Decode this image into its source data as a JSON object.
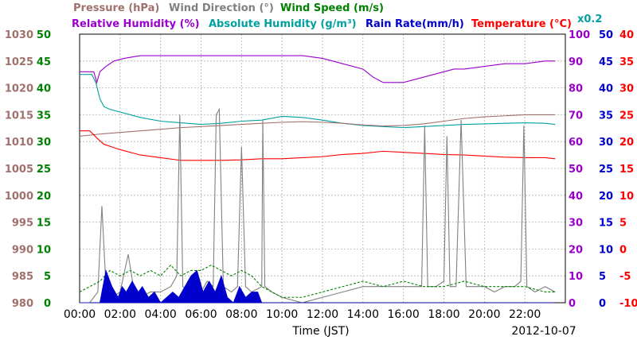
{
  "chart_data": {
    "type": "line",
    "date": "2012-10-07",
    "xlabel": "Time (JST)",
    "x_ticks": [
      "00:00",
      "02:00",
      "04:00",
      "06:00",
      "08:00",
      "10:00",
      "12:00",
      "14:00",
      "16:00",
      "18:00",
      "20:00",
      "22:00"
    ],
    "xlim": [
      0,
      24
    ],
    "legend_row1": [
      {
        "label": "Pressure (hPa)",
        "color": "#a0706c"
      },
      {
        "label": "Wind Direction (°)",
        "color": "#808080"
      },
      {
        "label": "Wind Speed (m/s)",
        "color": "#008000"
      }
    ],
    "legend_row2": [
      {
        "label": "Relative Humidity (%)",
        "color": "#9900cc"
      },
      {
        "label": "Absolute Humidity (g/m³)",
        "color": "#00a0a0"
      },
      {
        "label": "Rain Rate(mm/h)",
        "color": "#0000cc"
      },
      {
        "label": "Temperature (°C)",
        "color": "#ff0000"
      }
    ],
    "multiplier_label": "x0.2",
    "axes": [
      {
        "name": "pressure",
        "color": "#a0706c",
        "range": [
          980,
          1030
        ],
        "ticks": [
          "980",
          "985",
          "990",
          "995",
          "1000",
          "1005",
          "1010",
          "1015",
          "1020",
          "1025",
          "1030"
        ]
      },
      {
        "name": "wind_speed",
        "color": "#008000",
        "range": [
          0,
          50
        ],
        "ticks": [
          "0",
          "5",
          "10",
          "15",
          "20",
          "25",
          "30",
          "35",
          "40",
          "45",
          "50"
        ]
      },
      {
        "name": "humidity",
        "color": "#9900cc",
        "range": [
          0,
          100
        ],
        "ticks": [
          "0",
          "10",
          "20",
          "30",
          "40",
          "50",
          "60",
          "70",
          "80",
          "90",
          "100"
        ]
      },
      {
        "name": "rain_rate",
        "color": "#0000cc",
        "range": [
          0,
          50
        ],
        "ticks": [
          "0",
          "5",
          "10",
          "15",
          "20",
          "25",
          "30",
          "35",
          "40",
          "45",
          "50"
        ]
      },
      {
        "name": "temperature",
        "color": "#ff0000",
        "range": [
          -10,
          40
        ],
        "ticks": [
          "-10",
          "-5",
          "0",
          "5",
          "10",
          "15",
          "20",
          "25",
          "30",
          "35",
          "40"
        ]
      }
    ],
    "series": [
      {
        "name": "Relative Humidity (%)",
        "axis": "humidity",
        "color": "#9900cc",
        "x": [
          0,
          0.7,
          0.85,
          1.0,
          1.3,
          1.7,
          2.2,
          3,
          4,
          5,
          6,
          7,
          8,
          9,
          10,
          11,
          12,
          13,
          14,
          14.5,
          15,
          15.5,
          16,
          16.5,
          17,
          17.5,
          18,
          18.5,
          19,
          20,
          21,
          22,
          23,
          23.5
        ],
        "y": [
          86,
          86,
          82,
          86,
          88,
          90,
          91,
          92,
          92,
          92,
          92,
          92,
          92,
          92,
          92,
          92,
          91,
          89,
          87,
          84,
          82,
          82,
          82,
          83,
          84,
          85,
          86,
          87,
          87,
          88,
          89,
          89,
          90,
          90
        ]
      },
      {
        "name": "Absolute Humidity (g/m³)",
        "axis": "pressure",
        "color": "#00a0a0",
        "x": [
          0,
          0.6,
          0.8,
          1.0,
          1.2,
          1.5,
          2,
          3,
          4,
          5,
          6,
          7,
          8,
          9,
          10,
          11,
          12,
          13,
          14,
          15,
          16,
          17,
          18,
          19,
          20,
          21,
          22,
          23,
          23.5
        ],
        "y": [
          1022.5,
          1022.5,
          1021,
          1018,
          1016.5,
          1016,
          1015.5,
          1014.5,
          1013.8,
          1013.5,
          1013.2,
          1013.4,
          1013.8,
          1014,
          1014.7,
          1014.5,
          1014,
          1013.4,
          1013,
          1012.8,
          1012.6,
          1012.8,
          1013,
          1013.2,
          1013.3,
          1013.4,
          1013.5,
          1013.4,
          1013.2
        ]
      },
      {
        "name": "Pressure (hPa)",
        "axis": "pressure",
        "color": "#a0706c",
        "x": [
          0,
          1,
          2,
          3,
          4,
          5,
          6,
          7,
          8,
          9,
          10,
          11,
          12,
          13,
          14,
          15,
          16,
          17,
          18,
          19,
          20,
          21,
          22,
          23,
          23.5
        ],
        "y": [
          1011,
          1011.4,
          1011.7,
          1012,
          1012.3,
          1012.6,
          1012.8,
          1013,
          1013.2,
          1013.4,
          1013.6,
          1013.7,
          1013.6,
          1013.4,
          1013.1,
          1012.9,
          1013,
          1013.3,
          1013.8,
          1014.3,
          1014.6,
          1014.8,
          1015,
          1015,
          1015
        ]
      },
      {
        "name": "Temperature (°C)",
        "axis": "temperature",
        "color": "#ff0000",
        "x": [
          0,
          0.5,
          0.9,
          1.2,
          1.6,
          2,
          3,
          4,
          5,
          6,
          7,
          8,
          9,
          10,
          11,
          12,
          13,
          14,
          15,
          16,
          17,
          18,
          19,
          20,
          21,
          22,
          23,
          23.5
        ],
        "y": [
          22,
          22,
          20.5,
          19.5,
          19,
          18.5,
          17.5,
          17,
          16.5,
          16.5,
          16.5,
          16.6,
          16.8,
          16.8,
          17,
          17.2,
          17.6,
          17.8,
          18.2,
          18,
          17.8,
          17.6,
          17.5,
          17.3,
          17.1,
          17,
          17,
          16.8
        ]
      },
      {
        "name": "Wind Direction (°)",
        "axis": "wind_speed",
        "color": "#808080",
        "x": [
          0,
          0.5,
          0.9,
          1.1,
          1.3,
          1.6,
          2,
          2.4,
          2.7,
          3,
          3.5,
          4,
          4.5,
          4.8,
          4.95,
          5.1,
          5.5,
          6,
          6.3,
          6.6,
          6.75,
          6.9,
          7.1,
          7.5,
          7.8,
          8,
          8.2,
          8.5,
          9,
          9.05,
          9.15,
          9.5,
          10,
          11,
          12,
          13,
          14,
          15,
          16,
          16.5,
          16.9,
          17.05,
          17.2,
          17.6,
          18,
          18.15,
          18.3,
          18.6,
          18.85,
          19.1,
          19.5,
          20,
          20.5,
          21,
          21.5,
          21.8,
          21.95,
          22.1,
          22.5,
          23,
          23.5
        ],
        "y": [
          0,
          0,
          2,
          18,
          3,
          1,
          2,
          9,
          2,
          1,
          2,
          2,
          3,
          5,
          35,
          3,
          2,
          2,
          4,
          3,
          35,
          36,
          3,
          2,
          3,
          29,
          3,
          2,
          3,
          34,
          3,
          2,
          1,
          0,
          1,
          2,
          3,
          3,
          3,
          3,
          3,
          33,
          3,
          3,
          4,
          31,
          3,
          3,
          34,
          3,
          3,
          3,
          2,
          3,
          3,
          4,
          33,
          3,
          2,
          3,
          2
        ]
      },
      {
        "name": "Wind Speed (m/s)",
        "axis": "wind_speed",
        "color": "#008000",
        "x": [
          0,
          1,
          1.5,
          2,
          2.5,
          3,
          3.5,
          4,
          4.5,
          5,
          5.5,
          6,
          6.5,
          7,
          7.5,
          8,
          8.5,
          9,
          9.5,
          10,
          11,
          12,
          13,
          14,
          15,
          16,
          17,
          18,
          19,
          20,
          21,
          22,
          23,
          23.5
        ],
        "y": [
          2,
          4,
          6,
          5,
          6,
          5,
          6,
          5,
          7,
          5,
          6,
          6,
          7,
          6,
          5,
          6,
          5,
          3,
          2,
          1,
          1,
          2,
          3,
          4,
          3,
          4,
          3,
          3,
          4,
          3,
          3,
          3,
          2,
          2
        ]
      },
      {
        "name": "Rain Rate(mm/h)",
        "axis": "rain_rate",
        "color": "#0000cc",
        "x": [
          0,
          1,
          1.3,
          1.6,
          1.9,
          2.1,
          2.3,
          2.6,
          2.9,
          3.1,
          3.4,
          3.7,
          4,
          4.3,
          4.6,
          4.9,
          5.2,
          5.5,
          5.8,
          6.1,
          6.4,
          6.7,
          7,
          7.3,
          7.6,
          7.9,
          8.2,
          8.5,
          8.8,
          9,
          10,
          23.5
        ],
        "y": [
          0,
          0,
          6,
          3,
          1,
          3,
          2,
          4,
          2,
          3,
          1,
          2,
          0,
          1,
          2,
          1,
          3,
          5,
          6,
          2,
          4,
          2,
          5,
          1,
          0,
          3,
          1,
          2,
          2,
          0,
          0,
          0
        ]
      }
    ]
  }
}
